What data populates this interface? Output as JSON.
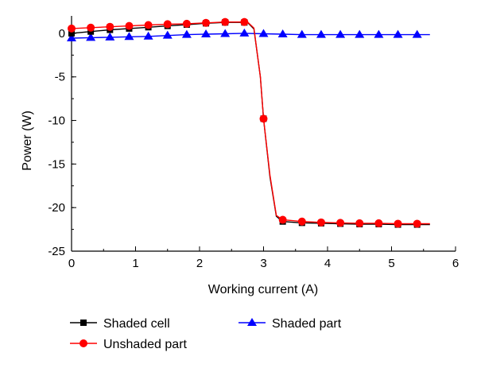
{
  "chart_data": {
    "type": "line",
    "title": "",
    "xlabel": "Working current (A)",
    "ylabel": "Power (W)",
    "xlim": [
      0,
      6
    ],
    "ylim": [
      -25,
      2
    ],
    "xticks": [
      0,
      1,
      2,
      3,
      4,
      5,
      6
    ],
    "yticks": [
      0,
      -5,
      -10,
      -15,
      -20,
      -25
    ],
    "grid": false,
    "legend": "bottom",
    "series": [
      {
        "name": "Shaded cell",
        "color": "#000000",
        "marker": "square",
        "markers": [
          [
            0,
            0.0
          ],
          [
            0.3,
            0.2
          ],
          [
            0.6,
            0.4
          ],
          [
            0.9,
            0.55
          ],
          [
            1.2,
            0.7
          ],
          [
            1.5,
            0.85
          ],
          [
            1.8,
            1.0
          ],
          [
            2.1,
            1.15
          ],
          [
            2.4,
            1.25
          ],
          [
            2.7,
            1.25
          ],
          [
            3.0,
            -9.8
          ],
          [
            3.3,
            -21.6
          ],
          [
            3.6,
            -21.75
          ],
          [
            3.9,
            -21.8
          ],
          [
            4.2,
            -21.85
          ],
          [
            4.5,
            -21.9
          ],
          [
            4.8,
            -21.9
          ],
          [
            5.1,
            -21.95
          ],
          [
            5.4,
            -21.95
          ]
        ],
        "line": [
          [
            0,
            0.0
          ],
          [
            0.3,
            0.2
          ],
          [
            0.6,
            0.4
          ],
          [
            0.9,
            0.55
          ],
          [
            1.2,
            0.7
          ],
          [
            1.5,
            0.85
          ],
          [
            1.8,
            1.0
          ],
          [
            2.1,
            1.15
          ],
          [
            2.4,
            1.25
          ],
          [
            2.75,
            1.25
          ],
          [
            2.85,
            0.5
          ],
          [
            2.95,
            -5.0
          ],
          [
            3.0,
            -9.8
          ],
          [
            3.1,
            -16.5
          ],
          [
            3.2,
            -21.0
          ],
          [
            3.3,
            -21.6
          ],
          [
            3.6,
            -21.75
          ],
          [
            3.9,
            -21.8
          ],
          [
            4.2,
            -21.85
          ],
          [
            4.5,
            -21.9
          ],
          [
            4.8,
            -21.9
          ],
          [
            5.1,
            -21.95
          ],
          [
            5.4,
            -21.95
          ],
          [
            5.6,
            -21.95
          ]
        ]
      },
      {
        "name": "Unshaded part",
        "color": "#ff0000",
        "marker": "circle",
        "markers": [
          [
            0,
            0.55
          ],
          [
            0.3,
            0.65
          ],
          [
            0.6,
            0.75
          ],
          [
            0.9,
            0.85
          ],
          [
            1.2,
            0.95
          ],
          [
            1.5,
            1.05
          ],
          [
            1.8,
            1.1
          ],
          [
            2.1,
            1.2
          ],
          [
            2.4,
            1.3
          ],
          [
            2.7,
            1.3
          ],
          [
            3.0,
            -9.8
          ],
          [
            3.3,
            -21.4
          ],
          [
            3.6,
            -21.6
          ],
          [
            3.9,
            -21.7
          ],
          [
            4.2,
            -21.75
          ],
          [
            4.5,
            -21.8
          ],
          [
            4.8,
            -21.8
          ],
          [
            5.1,
            -21.85
          ],
          [
            5.4,
            -21.85
          ]
        ],
        "line": [
          [
            0,
            0.55
          ],
          [
            0.3,
            0.65
          ],
          [
            0.6,
            0.75
          ],
          [
            0.9,
            0.85
          ],
          [
            1.2,
            0.95
          ],
          [
            1.5,
            1.05
          ],
          [
            1.8,
            1.1
          ],
          [
            2.1,
            1.2
          ],
          [
            2.4,
            1.3
          ],
          [
            2.75,
            1.3
          ],
          [
            2.85,
            0.6
          ],
          [
            2.95,
            -5.0
          ],
          [
            3.0,
            -9.8
          ],
          [
            3.1,
            -16.3
          ],
          [
            3.2,
            -20.9
          ],
          [
            3.3,
            -21.4
          ],
          [
            3.6,
            -21.6
          ],
          [
            3.9,
            -21.7
          ],
          [
            4.2,
            -21.75
          ],
          [
            4.5,
            -21.8
          ],
          [
            4.8,
            -21.8
          ],
          [
            5.1,
            -21.85
          ],
          [
            5.4,
            -21.85
          ],
          [
            5.6,
            -21.85
          ]
        ]
      },
      {
        "name": "Shaded part",
        "color": "#0000ff",
        "marker": "triangle",
        "markers": [
          [
            0,
            -0.55
          ],
          [
            0.3,
            -0.5
          ],
          [
            0.6,
            -0.45
          ],
          [
            0.9,
            -0.4
          ],
          [
            1.2,
            -0.35
          ],
          [
            1.5,
            -0.25
          ],
          [
            1.8,
            -0.15
          ],
          [
            2.1,
            -0.1
          ],
          [
            2.4,
            -0.05
          ],
          [
            2.7,
            0.0
          ],
          [
            3.0,
            -0.05
          ],
          [
            3.3,
            -0.1
          ],
          [
            3.6,
            -0.15
          ],
          [
            3.9,
            -0.15
          ],
          [
            4.2,
            -0.15
          ],
          [
            4.5,
            -0.15
          ],
          [
            4.8,
            -0.15
          ],
          [
            5.1,
            -0.15
          ],
          [
            5.4,
            -0.15
          ]
        ],
        "line": [
          [
            0,
            -0.55
          ],
          [
            0.3,
            -0.5
          ],
          [
            0.6,
            -0.45
          ],
          [
            0.9,
            -0.4
          ],
          [
            1.2,
            -0.35
          ],
          [
            1.5,
            -0.25
          ],
          [
            1.8,
            -0.15
          ],
          [
            2.1,
            -0.1
          ],
          [
            2.4,
            -0.05
          ],
          [
            2.7,
            0.0
          ],
          [
            3.0,
            -0.05
          ],
          [
            3.3,
            -0.1
          ],
          [
            3.6,
            -0.15
          ],
          [
            3.9,
            -0.15
          ],
          [
            4.2,
            -0.15
          ],
          [
            4.5,
            -0.15
          ],
          [
            4.8,
            -0.15
          ],
          [
            5.1,
            -0.15
          ],
          [
            5.4,
            -0.15
          ],
          [
            5.6,
            -0.15
          ]
        ]
      }
    ]
  }
}
